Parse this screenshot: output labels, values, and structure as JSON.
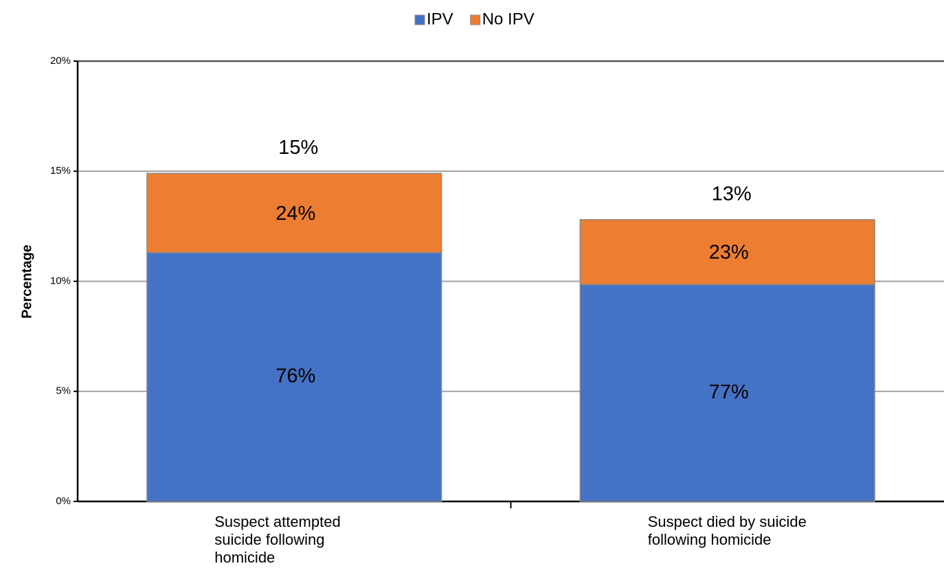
{
  "chart_data": {
    "type": "stacked_bar",
    "categories": [
      "Suspect attempted suicide following homicide",
      "Suspect died by suicide following homicide"
    ],
    "series": [
      {
        "name": "IPV",
        "color": "#4472c4",
        "values": [
          11.3,
          9.85
        ],
        "labels": [
          "76%",
          "77%"
        ]
      },
      {
        "name": "No IPV",
        "color": "#ed7d31",
        "values": [
          3.6,
          2.95
        ],
        "labels": [
          "24%",
          "23%"
        ]
      }
    ],
    "total_labels": [
      "15%",
      "13%"
    ],
    "y_label": "Percentage",
    "ylim": [
      0,
      20
    ],
    "yticks": [
      {
        "value": 0,
        "label": "0%"
      },
      {
        "value": 5,
        "label": "5%"
      },
      {
        "value": 10,
        "label": "10%"
      },
      {
        "value": 15,
        "label": "15%"
      },
      {
        "value": 20,
        "label": "20%"
      }
    ],
    "grid": true,
    "legend": "top"
  }
}
